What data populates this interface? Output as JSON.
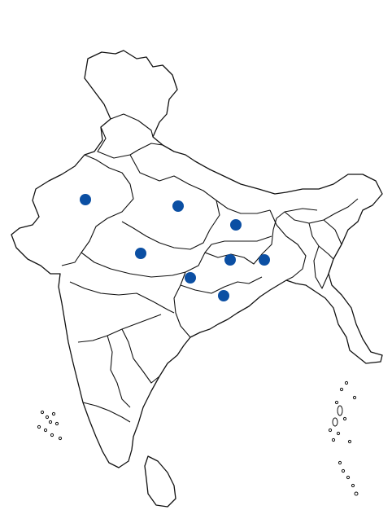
{
  "map": {
    "marker_color": "#0b4fa3",
    "outline_color": "#111111",
    "background": "#ffffff",
    "marker_count": 9
  }
}
